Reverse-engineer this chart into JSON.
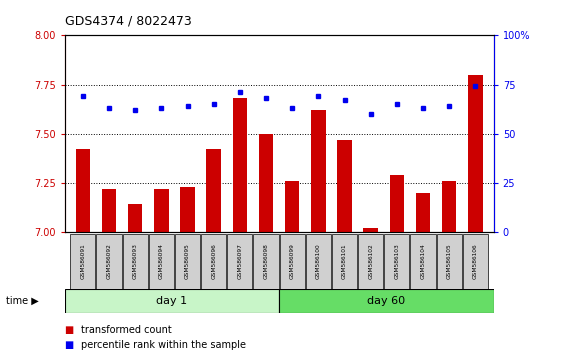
{
  "title": "GDS4374 / 8022473",
  "samples": [
    "GSM586091",
    "GSM586092",
    "GSM586093",
    "GSM586094",
    "GSM586095",
    "GSM586096",
    "GSM586097",
    "GSM586098",
    "GSM586099",
    "GSM586100",
    "GSM586101",
    "GSM586102",
    "GSM586103",
    "GSM586104",
    "GSM586105",
    "GSM586106"
  ],
  "bar_values": [
    7.42,
    7.22,
    7.14,
    7.22,
    7.23,
    7.42,
    7.68,
    7.5,
    7.26,
    7.62,
    7.47,
    7.02,
    7.29,
    7.2,
    7.26,
    7.8
  ],
  "dot_values": [
    69,
    63,
    62,
    63,
    64,
    65,
    71,
    68,
    63,
    69,
    67,
    60,
    65,
    63,
    64,
    74
  ],
  "bar_color": "#cc0000",
  "dot_color": "#0000ee",
  "ylim_left": [
    7.0,
    8.0
  ],
  "ylim_right": [
    0,
    100
  ],
  "yticks_left": [
    7.0,
    7.25,
    7.5,
    7.75,
    8.0
  ],
  "yticks_right": [
    0,
    25,
    50,
    75,
    100
  ],
  "grid_values": [
    7.25,
    7.5,
    7.75
  ],
  "day1_count": 8,
  "day60_count": 8,
  "day1_label": "day 1",
  "day60_label": "day 60",
  "day1_color": "#c8f5c8",
  "day60_color": "#66dd66",
  "bar_width": 0.55,
  "legend_bar_label": "transformed count",
  "legend_dot_label": "percentile rank within the sample"
}
